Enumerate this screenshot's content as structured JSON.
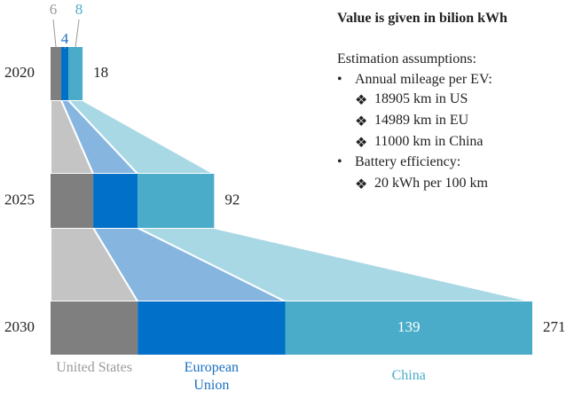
{
  "chart_data": {
    "type": "bar",
    "categories": [
      "2020",
      "2025",
      "2030"
    ],
    "series": [
      {
        "name": "United States",
        "color": "#7f7f7f",
        "connector_color": "#c4c4c4",
        "label_color": "#9a9a9a",
        "values": [
          6,
          24,
          49
        ]
      },
      {
        "name": "European Union",
        "color": "#0070c8",
        "connector_color": "#86b6e0",
        "label_color": "#1a6fc0",
        "values": [
          4,
          25,
          83
        ]
      },
      {
        "name": "China",
        "color": "#4aacc8",
        "connector_color": "#a9d8e5",
        "label_color": "#4aacc8",
        "values": [
          8,
          43,
          139
        ]
      }
    ],
    "totals": [
      18,
      92,
      271
    ],
    "xlim": [
      0,
      271
    ]
  },
  "notes": {
    "heading": "Value is given in bilion kWh",
    "assumptions_title": "Estimation assumptions:",
    "items": [
      {
        "text": "Annual mileage per EV:",
        "sub": [
          "18905 km in US",
          "14989 km in EU",
          "11000 km in China"
        ]
      },
      {
        "text": "Battery efficiency:",
        "sub": [
          "20 kWh per 100 km"
        ]
      }
    ]
  }
}
